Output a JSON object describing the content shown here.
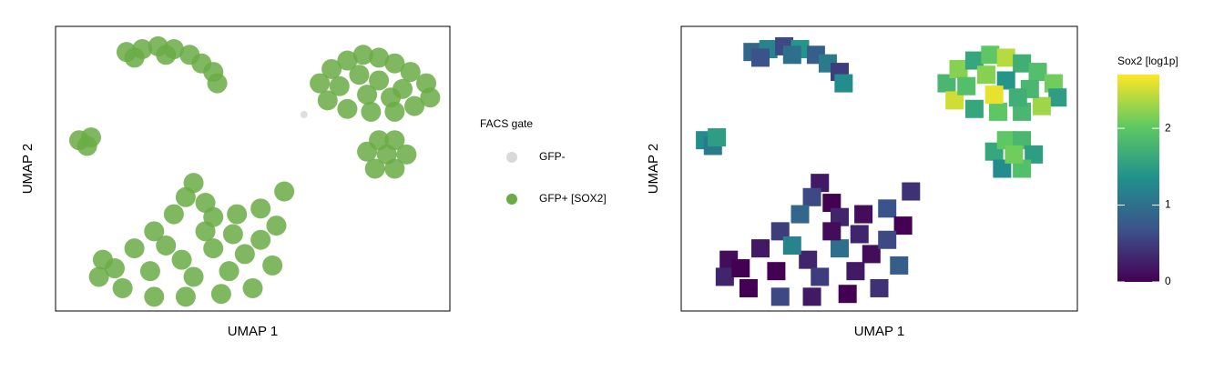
{
  "chart_data": [
    {
      "type": "scatter",
      "xlabel": "UMAP 1",
      "ylabel": "UMAP 2",
      "xlim": [
        0,
        100
      ],
      "ylim": [
        0,
        100
      ],
      "legend_title": "FACS gate",
      "series": [
        {
          "name": "GFP-",
          "color": "#d9d9d9",
          "x": [
            63
          ],
          "y": [
            69
          ]
        },
        {
          "name": "GFP+ [SOX2]",
          "color": "#6aab45",
          "x": [
            18,
            22,
            26,
            30,
            34,
            37,
            40,
            41,
            20,
            28,
            6,
            8,
            9,
            67,
            70,
            74,
            78,
            82,
            86,
            90,
            94,
            95,
            91,
            86,
            80,
            74,
            69,
            72,
            77,
            82,
            88,
            79,
            85,
            79,
            82,
            86,
            89,
            86,
            81,
            84,
            35,
            33,
            38,
            30,
            40,
            46,
            52,
            58,
            56,
            25,
            20,
            12,
            11,
            17,
            25,
            33,
            42,
            50,
            55,
            48,
            40,
            32,
            24,
            35,
            44,
            28,
            15,
            52,
            45,
            38
          ],
          "y": [
            91,
            92,
            93,
            92,
            90,
            87,
            84,
            80,
            89,
            90,
            60,
            58,
            61,
            80,
            85,
            88,
            90,
            89,
            87,
            84,
            80,
            75,
            72,
            70,
            70,
            71,
            74,
            79,
            83,
            81,
            78,
            76,
            75,
            56,
            60,
            60,
            55,
            50,
            50,
            55,
            45,
            40,
            38,
            34,
            33,
            34,
            36,
            42,
            30,
            28,
            22,
            18,
            12,
            8,
            5,
            5,
            6,
            8,
            16,
            20,
            22,
            18,
            14,
            12,
            14,
            23,
            15,
            25,
            27,
            28
          ]
        }
      ]
    },
    {
      "type": "hexbin",
      "xlabel": "UMAP 1",
      "ylabel": "UMAP 2",
      "xlim": [
        0,
        100
      ],
      "ylim": [
        0,
        100
      ],
      "colorbar_title": "Sox2 [log1p]",
      "clim": [
        0,
        2.7
      ],
      "cticks": [
        0,
        1,
        2
      ],
      "colorscale": [
        "#440154",
        "#3b528b",
        "#21918c",
        "#5ec962",
        "#fde725"
      ],
      "x": [
        18,
        22,
        26,
        30,
        34,
        37,
        40,
        41,
        20,
        28,
        6,
        8,
        9,
        67,
        70,
        74,
        78,
        82,
        86,
        90,
        94,
        95,
        91,
        86,
        80,
        74,
        69,
        72,
        77,
        82,
        88,
        79,
        85,
        79,
        82,
        86,
        89,
        86,
        81,
        84,
        35,
        33,
        38,
        30,
        40,
        46,
        52,
        58,
        56,
        25,
        20,
        12,
        11,
        17,
        25,
        33,
        42,
        50,
        55,
        48,
        40,
        32,
        24,
        35,
        44,
        28,
        15,
        52,
        45,
        38
      ],
      "y": [
        91,
        92,
        93,
        92,
        90,
        87,
        84,
        80,
        89,
        90,
        60,
        58,
        61,
        80,
        85,
        88,
        90,
        89,
        87,
        84,
        80,
        75,
        72,
        70,
        70,
        71,
        74,
        79,
        83,
        81,
        78,
        76,
        75,
        56,
        60,
        60,
        55,
        50,
        50,
        55,
        45,
        40,
        38,
        34,
        33,
        34,
        36,
        42,
        30,
        28,
        22,
        18,
        12,
        8,
        5,
        5,
        6,
        8,
        16,
        20,
        22,
        18,
        14,
        12,
        14,
        23,
        15,
        25,
        27,
        28
      ],
      "values": [
        0.9,
        1.2,
        0.6,
        1.4,
        0.8,
        1.1,
        0.5,
        1.3,
        0.7,
        1.0,
        1.3,
        1.1,
        1.5,
        1.8,
        2.2,
        1.6,
        2.0,
        2.4,
        1.7,
        1.9,
        2.1,
        1.5,
        2.3,
        1.8,
        2.0,
        1.6,
        2.5,
        1.9,
        2.2,
        1.4,
        1.8,
        2.6,
        1.7,
        1.6,
        2.0,
        1.8,
        1.5,
        1.9,
        1.3,
        2.1,
        0.2,
        0.6,
        0.0,
        0.9,
        0.3,
        0.1,
        0.7,
        0.4,
        0.0,
        0.5,
        0.2,
        0.1,
        0.3,
        0.0,
        0.6,
        0.2,
        0.0,
        0.4,
        0.8,
        0.1,
        1.0,
        0.3,
        0.0,
        0.5,
        0.2,
        1.2,
        0.0,
        0.6,
        0.3,
        0.1
      ]
    }
  ]
}
